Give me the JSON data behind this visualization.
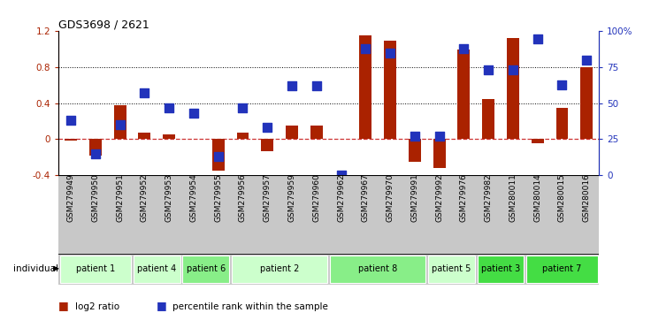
{
  "title": "GDS3698 / 2621",
  "samples": [
    "GSM279949",
    "GSM279950",
    "GSM279951",
    "GSM279952",
    "GSM279953",
    "GSM279954",
    "GSM279955",
    "GSM279956",
    "GSM279957",
    "GSM279959",
    "GSM279960",
    "GSM279962",
    "GSM279967",
    "GSM279970",
    "GSM279991",
    "GSM279992",
    "GSM279976",
    "GSM279982",
    "GSM280011",
    "GSM280014",
    "GSM280015",
    "GSM280016"
  ],
  "log2_ratio": [
    -0.02,
    -0.18,
    0.38,
    0.07,
    0.05,
    0.0,
    -0.35,
    0.07,
    -0.13,
    0.15,
    0.15,
    0.0,
    1.15,
    1.1,
    -0.25,
    -0.32,
    1.0,
    0.45,
    1.13,
    -0.05,
    0.35,
    0.8
  ],
  "percentile_rank": [
    0.38,
    0.15,
    0.35,
    0.57,
    0.47,
    0.43,
    0.13,
    0.47,
    0.33,
    0.62,
    0.62,
    0.0,
    0.88,
    0.85,
    0.27,
    0.27,
    0.88,
    0.73,
    0.73,
    0.95,
    0.63,
    0.8
  ],
  "patients": [
    {
      "label": "patient 1",
      "start": 0,
      "end": 3,
      "color": "#ccffcc"
    },
    {
      "label": "patient 4",
      "start": 3,
      "end": 5,
      "color": "#ccffcc"
    },
    {
      "label": "patient 6",
      "start": 5,
      "end": 7,
      "color": "#88ee88"
    },
    {
      "label": "patient 2",
      "start": 7,
      "end": 11,
      "color": "#ccffcc"
    },
    {
      "label": "patient 8",
      "start": 11,
      "end": 15,
      "color": "#88ee88"
    },
    {
      "label": "patient 5",
      "start": 15,
      "end": 17,
      "color": "#ccffcc"
    },
    {
      "label": "patient 3",
      "start": 17,
      "end": 19,
      "color": "#44dd44"
    },
    {
      "label": "patient 7",
      "start": 19,
      "end": 22,
      "color": "#44dd44"
    }
  ],
  "bar_color": "#aa2200",
  "dot_color": "#2233bb",
  "ylim_left": [
    -0.4,
    1.2
  ],
  "ylim_right": [
    0,
    100
  ],
  "bg_color": "#ffffff",
  "zero_line_color": "#cc3333",
  "bar_width": 0.5,
  "dot_size": 45,
  "gray_bg": "#c8c8c8"
}
